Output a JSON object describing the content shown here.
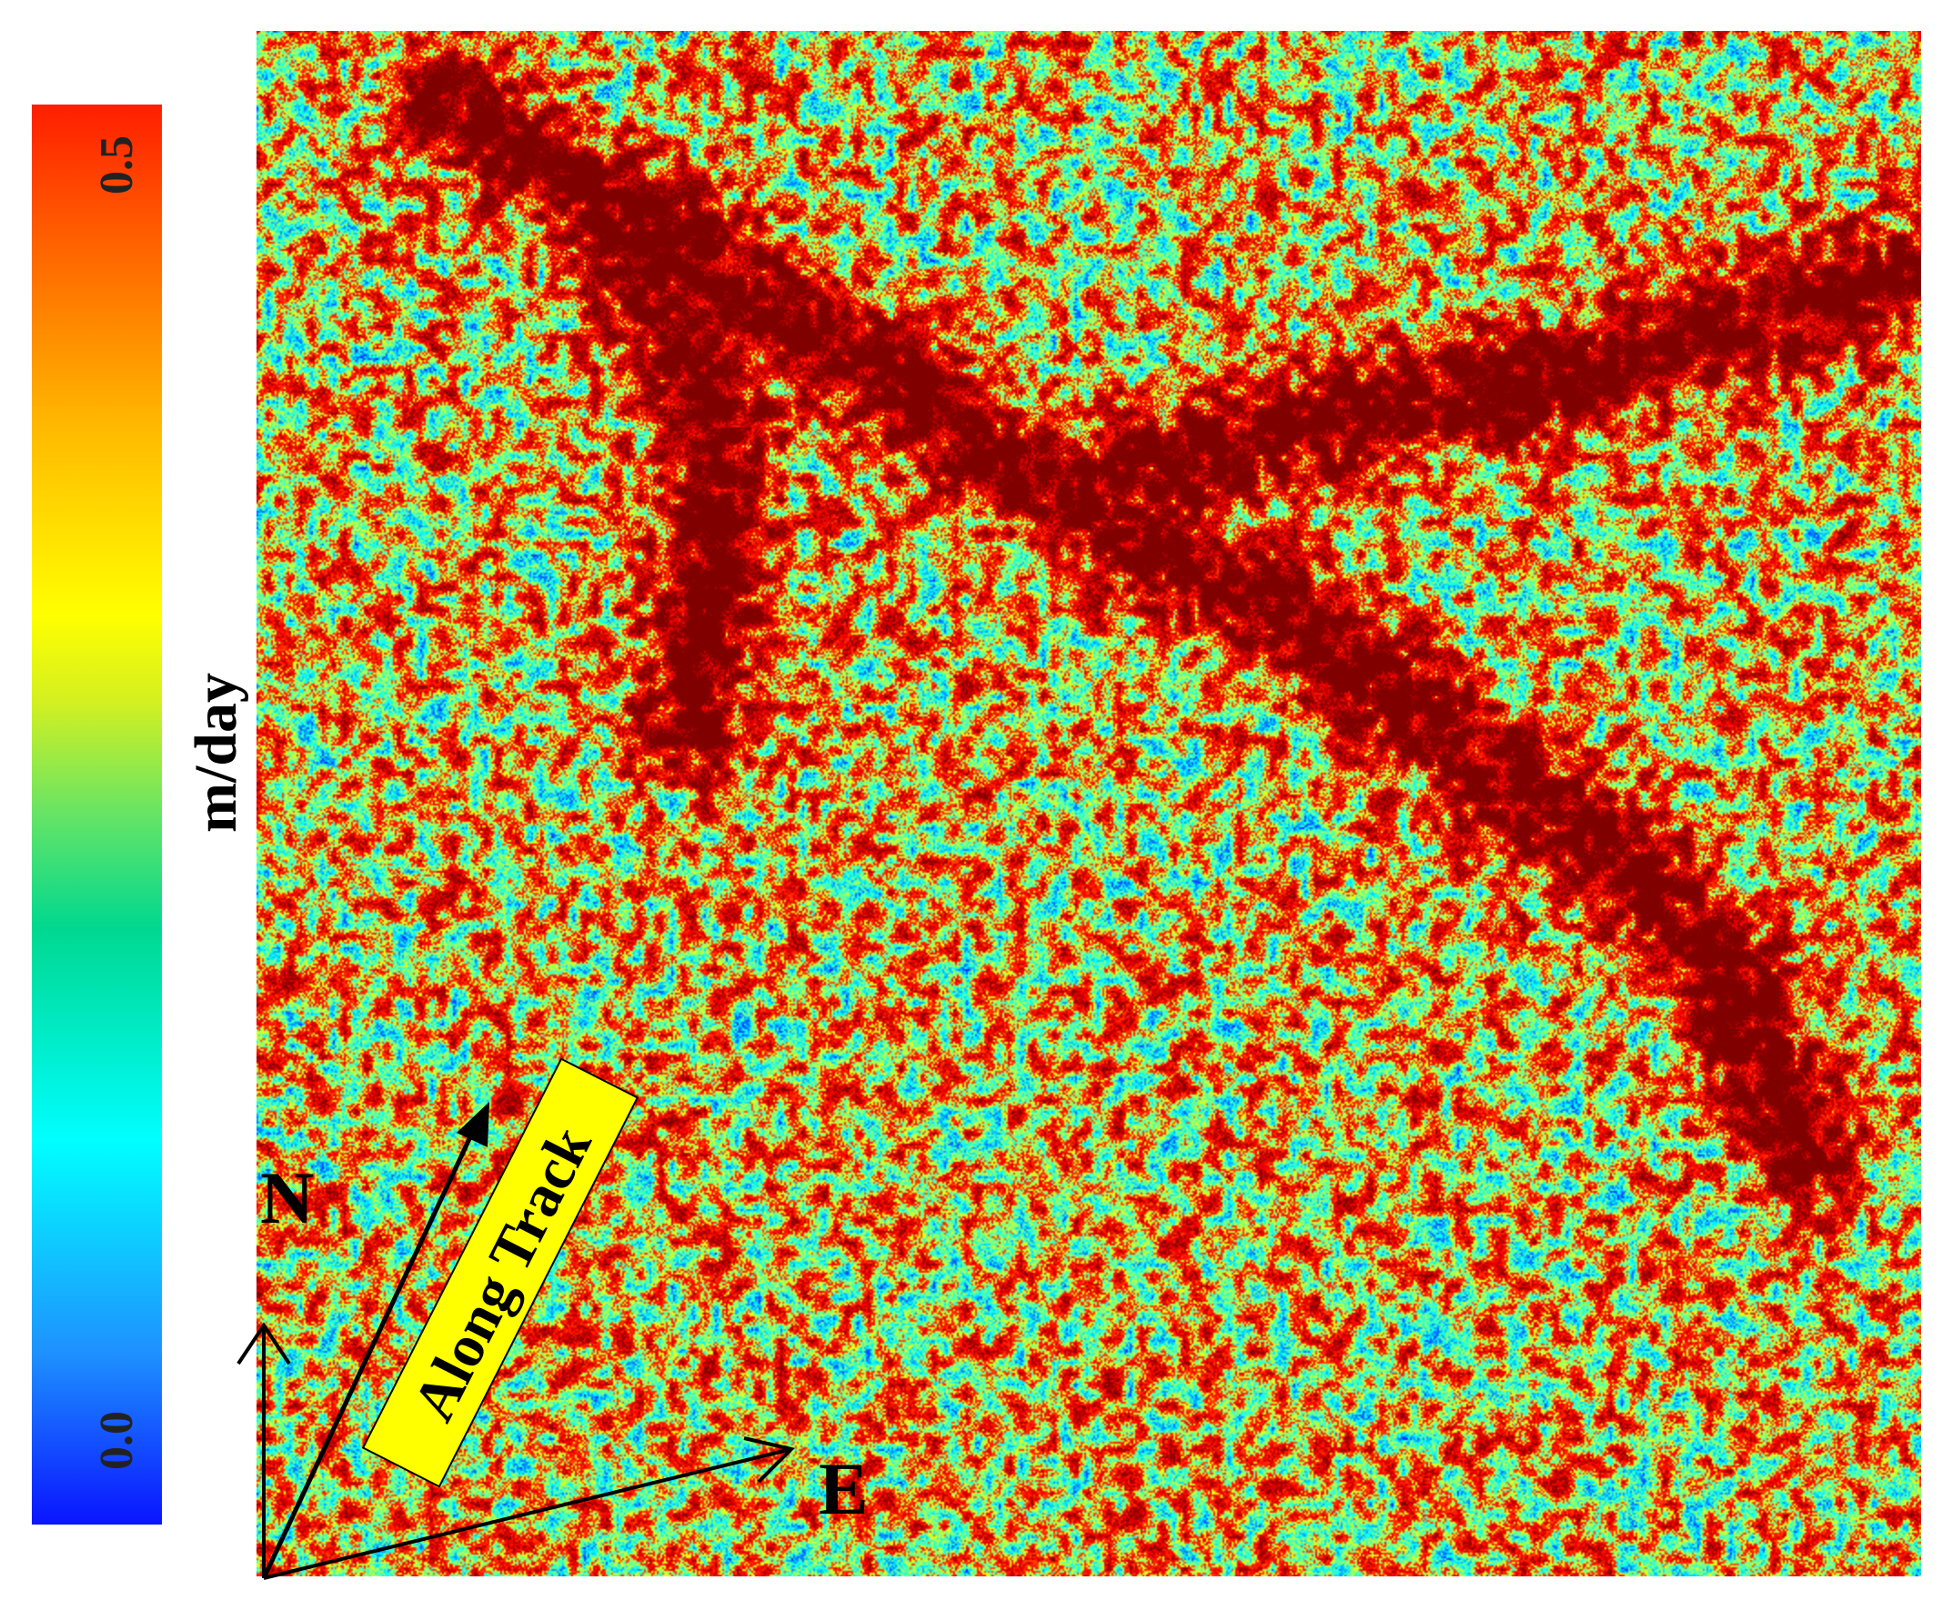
{
  "colorbar": {
    "unit": "m/day",
    "max_label": "0.5",
    "min_label": "0.0",
    "range": [
      0.0,
      0.5
    ],
    "colormap": "jet",
    "colors": [
      "#0a14ff",
      "#00ffff",
      "#ffff00",
      "#ff1e00"
    ]
  },
  "map": {
    "annotation_along_track": "Along Track",
    "north_label": "N",
    "east_label": "E",
    "annotation_box_color": "#ffff00"
  }
}
